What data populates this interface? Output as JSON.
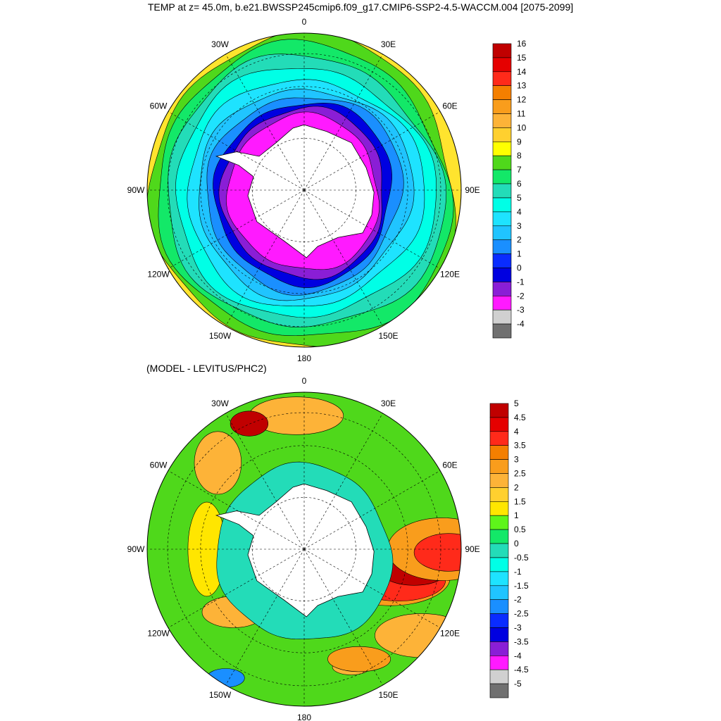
{
  "title": "TEMP at z=  45.0m, b.e21.BWSSP245cmip6.f09_g17.CMIP6-SSP2-4.5-WACCM.004 [2075-2099]",
  "lon_labels": [
    "0",
    "30E",
    "60E",
    "90E",
    "120E",
    "150E",
    "180",
    "150W",
    "120W",
    "90W",
    "60W",
    "30W"
  ],
  "panels": [
    {
      "name": "temp",
      "variable": "TEMP",
      "depth": "45.0m",
      "colorbar": {
        "labels": [
          "16",
          "15",
          "14",
          "13",
          "12",
          "11",
          "10",
          "9",
          "8",
          "7",
          "6",
          "5",
          "4",
          "3",
          "2",
          "1",
          "0",
          "-1",
          "-2",
          "-3",
          "-4"
        ],
        "colors": [
          "#c00000",
          "#e50000",
          "#ff2a1a",
          "#f47f00",
          "#f99d1c",
          "#fdb338",
          "#ffd02f",
          "#ffff00",
          "#4fd81b",
          "#13e868",
          "#23dcb8",
          "#00ffe6",
          "#1ee3ff",
          "#20c4ff",
          "#1a8fff",
          "#0a2cff",
          "#0000e0",
          "#8a1ed6",
          "#ff1aff",
          "#d0d0d0",
          "#707070"
        ]
      },
      "rings": [
        {
          "r": 1.0,
          "color": "#ffe42e"
        },
        {
          "r": 0.95,
          "color": "#4fd81b"
        },
        {
          "r": 0.9,
          "color": "#13e868"
        },
        {
          "r": 0.84,
          "color": "#23dcb8"
        },
        {
          "r": 0.78,
          "color": "#00ffe6"
        },
        {
          "r": 0.71,
          "color": "#1ee3ff"
        },
        {
          "r": 0.65,
          "color": "#20c4ff"
        },
        {
          "r": 0.6,
          "color": "#1a8fff"
        },
        {
          "r": 0.55,
          "color": "#0000e0"
        },
        {
          "r": 0.51,
          "color": "#8a1ed6"
        },
        {
          "r": 0.47,
          "color": "#ff1aff"
        }
      ]
    },
    {
      "name": "diff",
      "title": "(MODEL - LEVITUS/PHC2)",
      "colorbar": {
        "labels": [
          "5",
          "4.5",
          "4",
          "3.5",
          "3",
          "2.5",
          "2",
          "1.5",
          "1",
          "0.5",
          "0",
          "-0.5",
          "-1",
          "-1.5",
          "-2",
          "-2.5",
          "-3",
          "-3.5",
          "-4",
          "-4.5",
          "-5"
        ],
        "colors": [
          "#c00000",
          "#e50000",
          "#ff2a1a",
          "#f47f00",
          "#f99d1c",
          "#fdb338",
          "#ffd02f",
          "#ffe600",
          "#5ef51a",
          "#13e868",
          "#23dcb8",
          "#00ffe6",
          "#1ee3ff",
          "#20c4ff",
          "#1a8fff",
          "#0a2cff",
          "#0000e0",
          "#8a1ed6",
          "#ff1aff",
          "#d0d0d0",
          "#707070"
        ]
      },
      "base_color": "#4fd81b",
      "inner_color": "#23dcb8"
    }
  ]
}
